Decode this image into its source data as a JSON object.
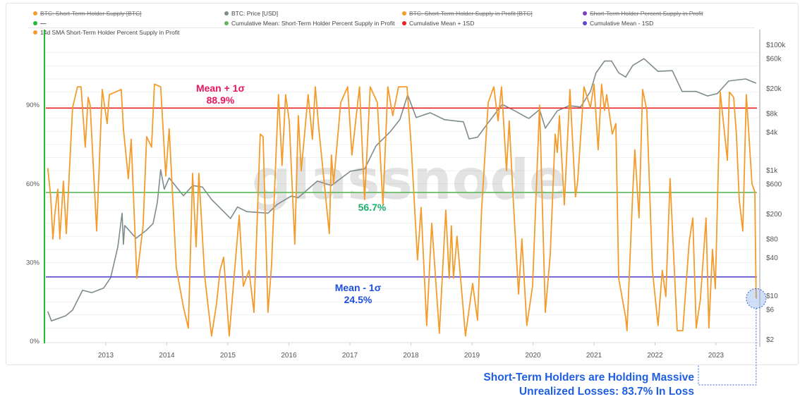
{
  "legend": [
    {
      "label": "BTC: Short-Term Holder Supply [BTC]",
      "color": "#f39c2b",
      "hidden": true
    },
    {
      "label": "BTC: Price [USD]",
      "color": "#7f8c8d",
      "hidden": false
    },
    {
      "label": "BTC: Short-Term Holder Supply in Profit [BTC]",
      "color": "#f39c2b",
      "hidden": true
    },
    {
      "label": "Short-Term Holder Percent Supply in Profit",
      "color": "#7b3fbf",
      "hidden": true
    },
    {
      "label": "—",
      "color": "#22bb33",
      "hidden": true
    },
    {
      "label": "Cumulative Mean: Short-Term Holder Percent Supply in Profit",
      "color": "#5cb85c",
      "hidden": false
    },
    {
      "label": "Cumulative Mean + 1SD",
      "color": "#e62020",
      "hidden": false
    },
    {
      "label": "Cumulative Mean - 1SD",
      "color": "#5a48d0",
      "hidden": false
    },
    {
      "label": "14d SMA Short-Term Holder Percent Supply in Profit",
      "color": "#f39c2b",
      "hidden": false
    }
  ],
  "watermark": "glassnode",
  "annotations": {
    "mean_plus": {
      "title": "Mean + 1σ",
      "value": "88.9%",
      "color": "#e8175d"
    },
    "mean": {
      "value": "56.7%",
      "color": "#1fae6e"
    },
    "mean_minus": {
      "title": "Mean - 1σ",
      "value": "24.5%",
      "color": "#1f4fe0"
    },
    "callout_line1": "Short-Term Holders are Holding Massive",
    "callout_line2": "Unrealized Losses: 83.7% In Loss"
  },
  "chart_data": {
    "type": "line",
    "title": "",
    "x_range": [
      "2012-01-01",
      "2023-09-01"
    ],
    "x_ticks": [
      "2013",
      "2014",
      "2015",
      "2016",
      "2017",
      "2018",
      "2019",
      "2020",
      "2021",
      "2022",
      "2023"
    ],
    "y_left": {
      "range": [
        0,
        100
      ],
      "ticks": [
        0,
        30,
        60,
        90
      ],
      "tick_labels": [
        "0%",
        "30%",
        "60%",
        "90%"
      ]
    },
    "y_right": {
      "scale": "log",
      "range": [
        2,
        100000
      ],
      "ticks": [
        2,
        6,
        10,
        40,
        80,
        200,
        600,
        1000,
        4000,
        8000,
        20000,
        60000,
        100000
      ],
      "tick_labels": [
        "$2",
        "$6",
        "$10",
        "$40",
        "$80",
        "$200",
        "$600",
        "$1k",
        "$4k",
        "$8k",
        "$20k",
        "$60k",
        "$100k"
      ]
    },
    "grid": true,
    "legend_placement": "top",
    "reference_lines": [
      {
        "name": "Cumulative Mean + 1SD",
        "value": 88.9,
        "color": "#e62020"
      },
      {
        "name": "Cumulative Mean: Short-Term Holder Percent Supply in Profit",
        "value": 56.7,
        "color": "#5cb85c"
      },
      {
        "name": "Cumulative Mean - 1SD",
        "value": 24.5,
        "color": "#5a48d0"
      }
    ],
    "series": [
      {
        "name": "14d SMA Short-Term Holder Percent Supply in Profit",
        "axis": "left",
        "color": "#f39c2b",
        "points": [
          [
            "2012-01-19",
            66
          ],
          [
            "2012-02-06",
            55
          ],
          [
            "2012-02-19",
            39
          ],
          [
            "2012-03-01",
            49
          ],
          [
            "2012-03-18",
            58
          ],
          [
            "2012-03-30",
            39
          ],
          [
            "2012-04-21",
            61
          ],
          [
            "2012-05-08",
            41
          ],
          [
            "2012-05-25",
            63
          ],
          [
            "2012-06-15",
            89
          ],
          [
            "2012-07-14",
            97
          ],
          [
            "2012-08-05",
            97
          ],
          [
            "2012-08-30",
            74
          ],
          [
            "2012-09-17",
            93
          ],
          [
            "2012-09-29",
            90
          ],
          [
            "2012-11-07",
            42
          ],
          [
            "2012-12-10",
            96
          ],
          [
            "2013-01-09",
            83
          ],
          [
            "2013-01-22",
            94
          ],
          [
            "2013-04-02",
            96
          ],
          [
            "2013-04-15",
            81
          ],
          [
            "2013-05-14",
            62
          ],
          [
            "2013-05-31",
            77
          ],
          [
            "2013-07-04",
            24
          ],
          [
            "2013-08-11",
            44
          ],
          [
            "2013-09-02",
            78
          ],
          [
            "2013-10-01",
            74
          ],
          [
            "2013-10-18",
            98
          ],
          [
            "2013-11-25",
            97
          ],
          [
            "2013-12-25",
            63
          ],
          [
            "2014-01-15",
            81
          ],
          [
            "2014-02-27",
            28
          ],
          [
            "2014-04-09",
            13
          ],
          [
            "2014-05-08",
            5
          ],
          [
            "2014-06-03",
            64
          ],
          [
            "2014-06-24",
            36
          ],
          [
            "2014-07-10",
            64
          ],
          [
            "2014-08-14",
            25
          ],
          [
            "2014-09-25",
            2
          ],
          [
            "2014-10-24",
            14
          ],
          [
            "2014-11-15",
            27
          ],
          [
            "2014-12-06",
            32
          ],
          [
            "2015-01-09",
            2
          ],
          [
            "2015-03-08",
            48
          ],
          [
            "2015-04-02",
            21
          ],
          [
            "2015-05-06",
            27
          ],
          [
            "2015-06-05",
            11
          ],
          [
            "2015-07-12",
            79
          ],
          [
            "2015-07-29",
            78
          ],
          [
            "2015-08-28",
            11
          ],
          [
            "2015-09-19",
            29
          ],
          [
            "2015-10-01",
            49
          ],
          [
            "2015-10-30",
            94
          ],
          [
            "2015-11-21",
            67
          ],
          [
            "2015-12-12",
            94
          ],
          [
            "2016-01-03",
            84
          ],
          [
            "2016-02-06",
            37
          ],
          [
            "2016-02-27",
            86
          ],
          [
            "2016-03-14",
            65
          ],
          [
            "2016-04-25",
            94
          ],
          [
            "2016-05-20",
            77
          ],
          [
            "2016-06-07",
            97
          ],
          [
            "2016-06-28",
            81
          ],
          [
            "2016-08-30",
            41
          ],
          [
            "2016-09-12",
            71
          ],
          [
            "2016-09-25",
            60
          ],
          [
            "2016-11-07",
            91
          ],
          [
            "2016-12-18",
            97
          ],
          [
            "2017-01-13",
            71
          ],
          [
            "2017-02-28",
            97
          ],
          [
            "2017-03-28",
            54
          ],
          [
            "2017-05-01",
            97
          ],
          [
            "2017-06-13",
            91
          ],
          [
            "2017-07-16",
            52
          ],
          [
            "2017-08-15",
            97
          ],
          [
            "2017-09-14",
            86
          ],
          [
            "2017-10-18",
            97
          ],
          [
            "2017-12-08",
            97
          ],
          [
            "2018-01-03",
            74
          ],
          [
            "2018-02-10",
            31
          ],
          [
            "2018-03-01",
            51
          ],
          [
            "2018-04-04",
            6
          ],
          [
            "2018-05-04",
            45
          ],
          [
            "2018-06-19",
            3
          ],
          [
            "2018-07-27",
            50
          ],
          [
            "2018-08-17",
            24
          ],
          [
            "2018-08-30",
            44
          ],
          [
            "2018-09-12",
            24
          ],
          [
            "2018-10-03",
            40
          ],
          [
            "2018-11-23",
            2
          ],
          [
            "2019-01-05",
            22
          ],
          [
            "2019-02-04",
            8
          ],
          [
            "2019-02-28",
            50
          ],
          [
            "2019-04-07",
            91
          ],
          [
            "2019-05-10",
            97
          ],
          [
            "2019-06-05",
            84
          ],
          [
            "2019-06-26",
            97
          ],
          [
            "2019-07-25",
            65
          ],
          [
            "2019-08-11",
            84
          ],
          [
            "2019-09-02",
            57
          ],
          [
            "2019-10-06",
            18
          ],
          [
            "2019-10-26",
            39
          ],
          [
            "2019-11-25",
            6
          ],
          [
            "2019-12-29",
            21
          ],
          [
            "2020-02-10",
            90
          ],
          [
            "2020-03-14",
            11
          ],
          [
            "2020-04-13",
            33
          ],
          [
            "2020-05-12",
            79
          ],
          [
            "2020-05-25",
            72
          ],
          [
            "2020-06-07",
            86
          ],
          [
            "2020-07-06",
            52
          ],
          [
            "2020-08-09",
            96
          ],
          [
            "2020-09-12",
            55
          ],
          [
            "2020-09-25",
            61
          ],
          [
            "2020-11-02",
            97
          ],
          [
            "2020-12-10",
            89
          ],
          [
            "2021-01-01",
            98
          ],
          [
            "2021-01-26",
            73
          ],
          [
            "2021-02-16",
            98
          ],
          [
            "2021-03-03",
            88
          ],
          [
            "2021-03-16",
            94
          ],
          [
            "2021-04-19",
            79
          ],
          [
            "2021-05-10",
            83
          ],
          [
            "2021-05-27",
            24
          ],
          [
            "2021-07-08",
            9
          ],
          [
            "2021-07-16",
            4
          ],
          [
            "2021-08-20",
            57
          ],
          [
            "2021-09-02",
            73
          ],
          [
            "2021-09-27",
            47
          ],
          [
            "2021-10-18",
            96
          ],
          [
            "2021-11-13",
            88
          ],
          [
            "2021-12-16",
            27
          ],
          [
            "2022-01-19",
            6
          ],
          [
            "2022-02-14",
            27
          ],
          [
            "2022-03-05",
            17
          ],
          [
            "2022-03-30",
            62
          ],
          [
            "2022-05-12",
            4
          ],
          [
            "2022-06-15",
            4
          ],
          [
            "2022-07-23",
            38
          ],
          [
            "2022-08-14",
            47
          ],
          [
            "2022-09-04",
            5
          ],
          [
            "2022-09-29",
            16
          ],
          [
            "2022-11-02",
            47
          ],
          [
            "2022-11-19",
            5
          ],
          [
            "2022-12-10",
            35
          ],
          [
            "2022-12-27",
            20
          ],
          [
            "2023-01-26",
            95
          ],
          [
            "2023-02-12",
            85
          ],
          [
            "2023-03-08",
            69
          ],
          [
            "2023-03-20",
            95
          ],
          [
            "2023-04-15",
            93
          ],
          [
            "2023-05-01",
            79
          ],
          [
            "2023-05-18",
            54
          ],
          [
            "2023-06-09",
            42
          ],
          [
            "2023-06-30",
            94
          ],
          [
            "2023-08-03",
            60
          ],
          [
            "2023-08-20",
            57
          ],
          [
            "2023-08-28",
            16.3
          ]
        ]
      },
      {
        "name": "BTC: Price [USD]",
        "axis": "right",
        "color": "#7f8c8d",
        "points": [
          [
            "2012-01-19",
            5.5
          ],
          [
            "2012-02-10",
            3.9
          ],
          [
            "2012-05-04",
            4.7
          ],
          [
            "2012-06-15",
            5.8
          ],
          [
            "2012-08-14",
            12
          ],
          [
            "2012-10-08",
            11
          ],
          [
            "2012-12-18",
            13
          ],
          [
            "2013-01-30",
            19
          ],
          [
            "2013-03-12",
            59
          ],
          [
            "2013-04-07",
            203
          ],
          [
            "2013-04-15",
            65
          ],
          [
            "2013-04-23",
            129
          ],
          [
            "2013-06-30",
            81
          ],
          [
            "2013-08-28",
            107
          ],
          [
            "2013-10-10",
            139
          ],
          [
            "2013-11-05",
            302
          ],
          [
            "2013-11-25",
            1000
          ],
          [
            "2013-12-16",
            490
          ],
          [
            "2014-01-15",
            740
          ],
          [
            "2014-04-09",
            385
          ],
          [
            "2014-06-03",
            560
          ],
          [
            "2014-08-01",
            530
          ],
          [
            "2014-09-25",
            336
          ],
          [
            "2015-01-17",
            167
          ],
          [
            "2015-02-28",
            255
          ],
          [
            "2015-04-23",
            215
          ],
          [
            "2015-08-28",
            203
          ],
          [
            "2015-10-22",
            280
          ],
          [
            "2016-01-15",
            380
          ],
          [
            "2016-02-27",
            360
          ],
          [
            "2016-06-19",
            660
          ],
          [
            "2016-09-12",
            560
          ],
          [
            "2017-01-05",
            950
          ],
          [
            "2017-03-28",
            1030
          ],
          [
            "2017-06-05",
            2400
          ],
          [
            "2017-08-28",
            4000
          ],
          [
            "2017-10-26",
            6300
          ],
          [
            "2017-12-12",
            15600
          ],
          [
            "2018-02-02",
            6800
          ],
          [
            "2018-04-25",
            8100
          ],
          [
            "2018-07-18",
            6300
          ],
          [
            "2018-11-11",
            5800
          ],
          [
            "2018-12-14",
            3100
          ],
          [
            "2019-02-04",
            3300
          ],
          [
            "2019-03-28",
            5200
          ],
          [
            "2019-05-22",
            8100
          ],
          [
            "2019-06-30",
            11000
          ],
          [
            "2019-09-14",
            8700
          ],
          [
            "2019-11-25",
            6800
          ],
          [
            "2019-12-08",
            6600
          ],
          [
            "2020-02-10",
            9100
          ],
          [
            "2020-03-14",
            4600
          ],
          [
            "2020-05-25",
            8700
          ],
          [
            "2020-08-05",
            10500
          ],
          [
            "2020-10-12",
            10000
          ],
          [
            "2020-12-10",
            17700
          ],
          [
            "2021-01-13",
            35000
          ],
          [
            "2021-03-03",
            54000
          ],
          [
            "2021-04-15",
            54000
          ],
          [
            "2021-05-27",
            35000
          ],
          [
            "2021-07-08",
            30000
          ],
          [
            "2021-08-20",
            46000
          ],
          [
            "2021-10-26",
            59000
          ],
          [
            "2022-01-19",
            37000
          ],
          [
            "2022-04-13",
            38000
          ],
          [
            "2022-06-11",
            17700
          ],
          [
            "2022-09-04",
            17700
          ],
          [
            "2022-11-11",
            15000
          ],
          [
            "2023-01-09",
            16400
          ],
          [
            "2023-03-16",
            26000
          ],
          [
            "2023-06-26",
            28000
          ],
          [
            "2023-08-28",
            24000
          ]
        ]
      }
    ]
  }
}
